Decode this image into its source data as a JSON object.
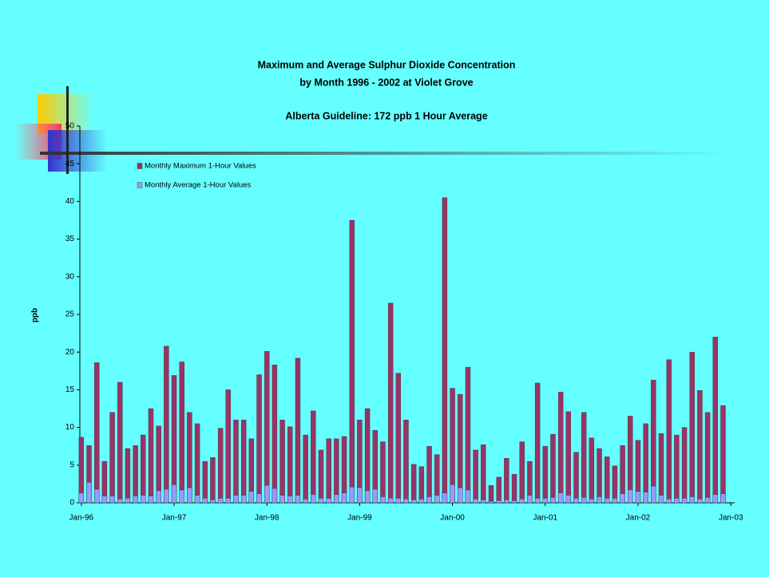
{
  "chart_data": {
    "type": "bar",
    "title": "Maximum and Average Sulphur Dioxide Concentration",
    "subtitle": "by Month 1996 - 2002 at Violet Grove",
    "annotation": "Alberta Guideline: 172 ppb 1 Hour Average",
    "y_label": "ppb",
    "categories": [
      "Jan-96",
      null,
      null,
      null,
      null,
      null,
      null,
      null,
      null,
      null,
      null,
      null,
      "Jan-97",
      null,
      null,
      null,
      null,
      null,
      null,
      null,
      null,
      null,
      null,
      null,
      "Jan-98",
      null,
      null,
      null,
      null,
      null,
      null,
      null,
      null,
      null,
      null,
      null,
      "Jan-99",
      null,
      null,
      null,
      null,
      null,
      null,
      null,
      null,
      null,
      null,
      null,
      "Jan-00",
      null,
      null,
      null,
      null,
      null,
      null,
      null,
      null,
      null,
      null,
      null,
      "Jan-01",
      null,
      null,
      null,
      null,
      null,
      null,
      null,
      null,
      null,
      null,
      null,
      "Jan-02",
      null,
      null,
      null,
      null,
      null,
      null,
      null,
      null,
      null,
      null,
      null,
      "Jan-03"
    ],
    "series": [
      {
        "name": "Monthly Maximum 1-Hour Values",
        "color": "#993366",
        "values": [
          8.7,
          7.6,
          18.6,
          5.5,
          12,
          16,
          7.2,
          7.6,
          9,
          12.5,
          10.2,
          20.8,
          16.9,
          18.7,
          12,
          10.5,
          5.5,
          6,
          9.9,
          15,
          11,
          11,
          8.5,
          17,
          20.1,
          18.3,
          11,
          10.1,
          19.2,
          9,
          12.2,
          7,
          8.5,
          8.5,
          8.8,
          37.5,
          11,
          12.5,
          9.6,
          8.1,
          26.5,
          17.2,
          11,
          5.1,
          4.8,
          7.5,
          6.4,
          40.5,
          15.2,
          14.4,
          18,
          7,
          7.7,
          2.3,
          3.4,
          5.9,
          3.8,
          8.1,
          5.5,
          15.9,
          7.5,
          9.1,
          14.7,
          12.1,
          6.7,
          12,
          8.6,
          7.2,
          6.1,
          4.9,
          7.6,
          11.5,
          8.3,
          10.5,
          16.3,
          9.2,
          19,
          9,
          10,
          20,
          14.9,
          12,
          22,
          12.9,
          null
        ]
      },
      {
        "name": "Monthly Average 1-Hour Values",
        "color": "#9999ff",
        "values": [
          1.3,
          2.7,
          1.8,
          0.9,
          0.9,
          0.5,
          0.6,
          0.9,
          1.0,
          0.9,
          1.6,
          1.8,
          2.4,
          1.7,
          2.0,
          1.0,
          0.6,
          0.4,
          0.6,
          0.6,
          1.0,
          1.0,
          1.5,
          1.2,
          2.3,
          1.9,
          1.0,
          0.9,
          1.0,
          0.5,
          1.1,
          0.6,
          0.6,
          1.1,
          1.3,
          2.1,
          2.0,
          1.6,
          1.8,
          0.8,
          0.6,
          0.6,
          0.5,
          0.4,
          0.5,
          0.8,
          1.0,
          1.3,
          2.4,
          2.0,
          1.7,
          0.5,
          0.4,
          0.2,
          0.3,
          0.4,
          0.3,
          0.5,
          1.0,
          0.6,
          0.6,
          0.7,
          1.3,
          1.0,
          0.6,
          0.7,
          0.5,
          0.8,
          0.6,
          0.6,
          1.2,
          1.7,
          1.5,
          1.4,
          2.2,
          1.0,
          0.5,
          0.6,
          0.6,
          0.8,
          0.5,
          0.7,
          1.1,
          1.2,
          null
        ]
      }
    ],
    "ylim": [
      0,
      50
    ],
    "yticks": [
      0,
      5,
      10,
      15,
      20,
      25,
      30,
      35,
      40,
      45,
      50
    ],
    "grid": false
  }
}
